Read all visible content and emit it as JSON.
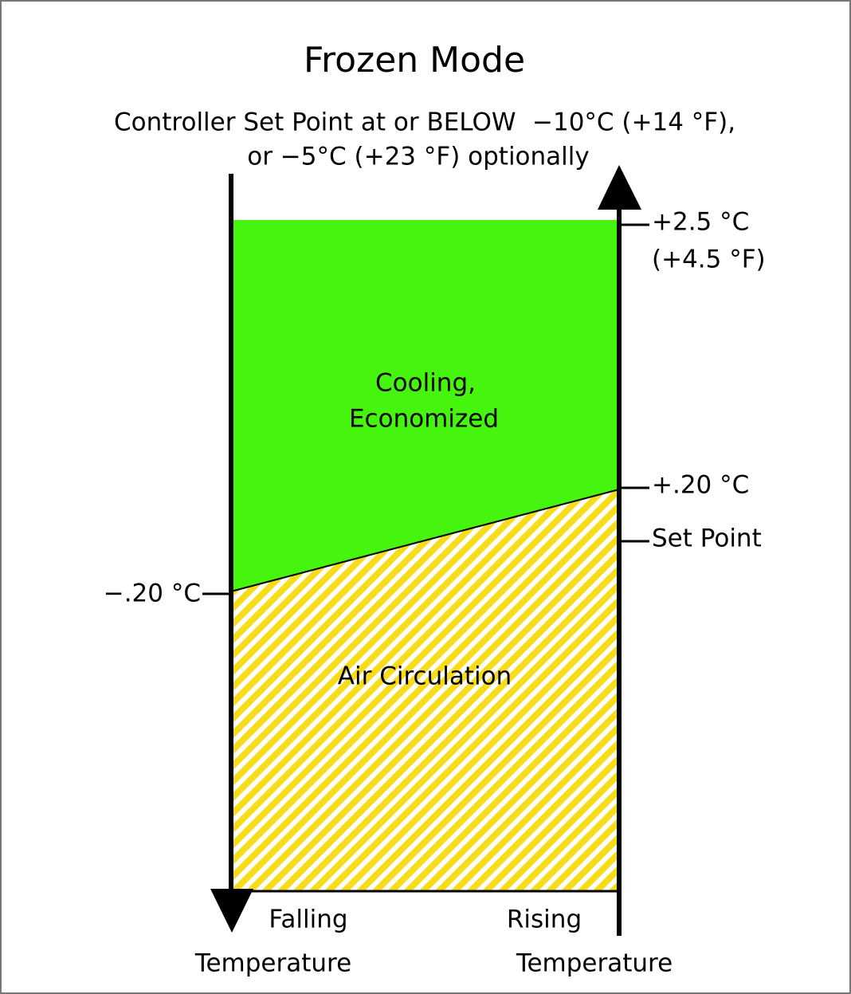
{
  "title": "Frozen Mode",
  "subtitle": {
    "line1_left": "Controller Set Point at or BELOW",
    "line1_right": "−10°C (+14 °F),",
    "line2": "or −5°C (+23 °F) optionally"
  },
  "regions": {
    "upper": [
      "Cooling,",
      "Economized"
    ],
    "lower": "Air Circulation"
  },
  "right_labels": {
    "top": [
      "+2.5 °C",
      "(+4.5 °F)"
    ],
    "boundary": "+.20 °C",
    "set_point": "Set Point"
  },
  "left_labels": {
    "boundary": "−.20 °C"
  },
  "axes": {
    "left": [
      "Falling",
      "Temperature"
    ],
    "right": [
      "Rising",
      "Temperature"
    ]
  }
}
